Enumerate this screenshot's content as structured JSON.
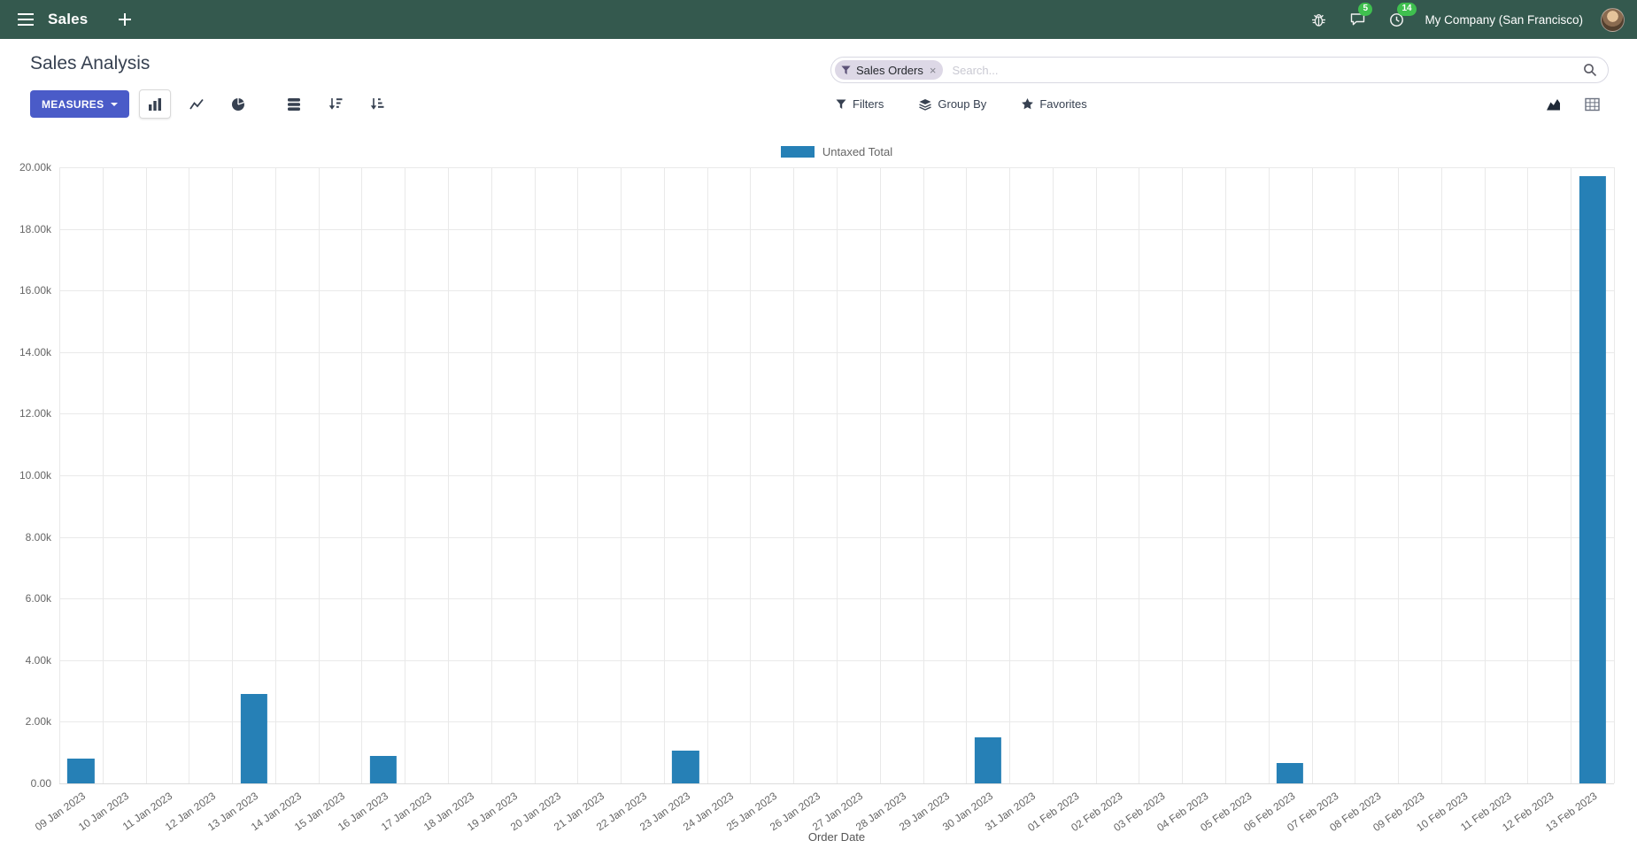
{
  "navbar": {
    "app_name": "Sales",
    "messages_badge": "5",
    "activities_badge": "14",
    "company": "My Company (San Francisco)"
  },
  "control_panel": {
    "title": "Sales Analysis",
    "measures_button": "MEASURES",
    "filters_label": "Filters",
    "group_by_label": "Group By",
    "favorites_label": "Favorites",
    "search": {
      "facet_label": "Sales Orders",
      "facet_remove": "×",
      "placeholder": "Search..."
    }
  },
  "chart_data": {
    "type": "bar",
    "title": "",
    "xlabel": "Order Date",
    "ylabel": "",
    "ylim": [
      0,
      20000
    ],
    "ytick_step": 2000,
    "ytick_labels": [
      "0.00",
      "2.00k",
      "4.00k",
      "6.00k",
      "8.00k",
      "10.00k",
      "12.00k",
      "14.00k",
      "16.00k",
      "18.00k",
      "20.00k"
    ],
    "grid": true,
    "legend_position": "top",
    "categories": [
      "09 Jan 2023",
      "10 Jan 2023",
      "11 Jan 2023",
      "12 Jan 2023",
      "13 Jan 2023",
      "14 Jan 2023",
      "15 Jan 2023",
      "16 Jan 2023",
      "17 Jan 2023",
      "18 Jan 2023",
      "19 Jan 2023",
      "20 Jan 2023",
      "21 Jan 2023",
      "22 Jan 2023",
      "23 Jan 2023",
      "24 Jan 2023",
      "25 Jan 2023",
      "26 Jan 2023",
      "27 Jan 2023",
      "28 Jan 2023",
      "29 Jan 2023",
      "30 Jan 2023",
      "31 Jan 2023",
      "01 Feb 2023",
      "02 Feb 2023",
      "03 Feb 2023",
      "04 Feb 2023",
      "05 Feb 2023",
      "06 Feb 2023",
      "07 Feb 2023",
      "08 Feb 2023",
      "09 Feb 2023",
      "10 Feb 2023",
      "11 Feb 2023",
      "12 Feb 2023",
      "13 Feb 2023"
    ],
    "series": [
      {
        "name": "Untaxed Total",
        "color": "#2680b6",
        "values": [
          800,
          0,
          0,
          0,
          2900,
          0,
          0,
          900,
          0,
          0,
          0,
          0,
          0,
          0,
          1050,
          0,
          0,
          0,
          0,
          0,
          0,
          1500,
          0,
          0,
          0,
          0,
          0,
          0,
          650,
          0,
          0,
          0,
          0,
          0,
          0,
          19700
        ]
      }
    ]
  },
  "colors": {
    "navbar_bg": "#34594e",
    "primary_button": "#4a5bc8",
    "badge_green": "#3fc04f",
    "bar_blue": "#2680b6"
  }
}
